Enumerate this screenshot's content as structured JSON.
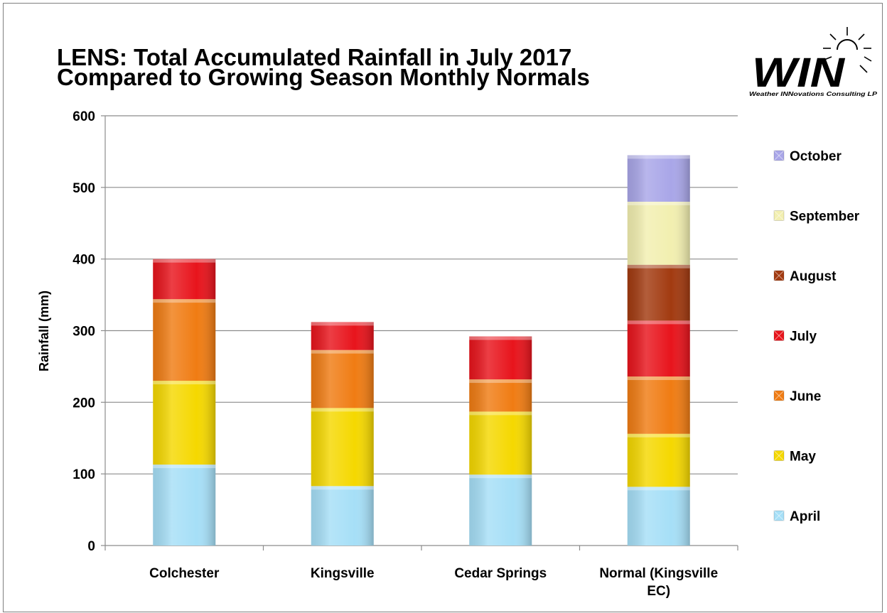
{
  "title_lines": [
    "LENS: Total Accumulated Rainfall in July 2017",
    "Compared to Growing Season Monthly Normals"
  ],
  "logo": {
    "text": "WIN",
    "tagline": "Weather INNovations Consulting LP",
    "icon": "sun-icon",
    "colors": {
      "text": "#000000",
      "accent": "#000000"
    }
  },
  "chart_data": {
    "type": "bar",
    "stacked": true,
    "title": "LENS: Total Accumulated Rainfall in July 2017 Compared to Growing Season Monthly Normals",
    "xlabel": "",
    "ylabel": "Rainfall (mm)",
    "ylim": [
      0,
      600
    ],
    "yticks": [
      0,
      100,
      200,
      300,
      400,
      500,
      600
    ],
    "grid": true,
    "legend": "right",
    "categories": [
      "Colchester",
      "Kingsville",
      "Cedar Springs",
      "Normal (Kingsville EC)"
    ],
    "series": [
      {
        "name": "April",
        "color": "#a6dff7",
        "values": [
          113,
          83,
          99,
          82
        ]
      },
      {
        "name": "May",
        "color": "#f5d800",
        "values": [
          117,
          109,
          88,
          74
        ]
      },
      {
        "name": "June",
        "color": "#f07c13",
        "values": [
          114,
          81,
          45,
          80
        ]
      },
      {
        "name": "July",
        "color": "#e8141c",
        "values": [
          56,
          39,
          60,
          78
        ]
      },
      {
        "name": "August",
        "color": "#a23a10",
        "values": [
          0,
          0,
          0,
          78
        ]
      },
      {
        "name": "September",
        "color": "#f2efb0",
        "values": [
          0,
          0,
          0,
          88
        ]
      },
      {
        "name": "October",
        "color": "#a9a6e8",
        "values": [
          0,
          0,
          0,
          65
        ]
      }
    ]
  }
}
